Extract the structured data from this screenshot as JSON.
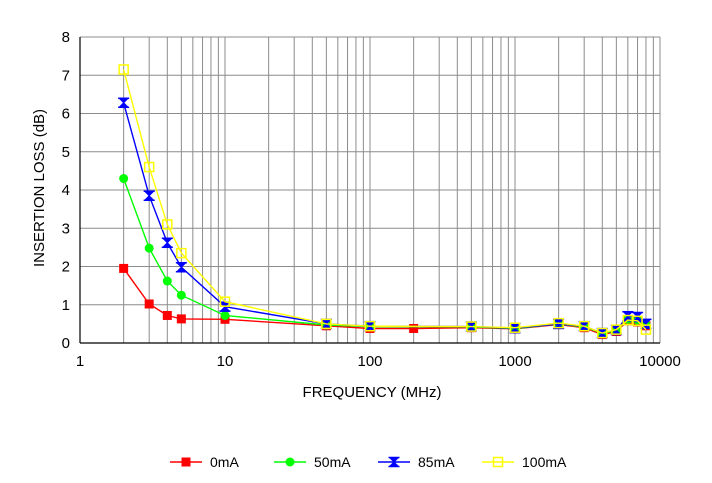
{
  "chart_data": {
    "type": "line",
    "title": "",
    "xlabel": "FREQUENCY (MHz)",
    "ylabel": "INSERTION LOSS (dB)",
    "x_scale": "log",
    "xlim": [
      1,
      10000
    ],
    "ylim": [
      0,
      8
    ],
    "x_tick_labels": [
      "1",
      "10",
      "100",
      "1000",
      "10000"
    ],
    "y_tick_labels": [
      "0",
      "1",
      "2",
      "3",
      "4",
      "5",
      "6",
      "7",
      "8"
    ],
    "grid": true,
    "legend_position": "bottom-center",
    "series": [
      {
        "name": "0mA",
        "color": "#ff0000",
        "marker": "square-filled",
        "x": [
          2,
          3,
          4,
          5,
          10,
          50,
          100,
          200,
          500,
          1000,
          2000,
          3000,
          4000,
          5000,
          6000,
          7000,
          8000
        ],
        "y": [
          1.95,
          1.02,
          0.72,
          0.63,
          0.62,
          0.45,
          0.38,
          0.38,
          0.4,
          0.37,
          0.48,
          0.4,
          0.22,
          0.3,
          0.58,
          0.55,
          0.45
        ]
      },
      {
        "name": "50mA",
        "color": "#00ff00",
        "marker": "circle-filled",
        "x": [
          2,
          3,
          4,
          5,
          10,
          50,
          100,
          500,
          1000,
          2000,
          3000,
          4000,
          5000,
          6000,
          7000,
          8000
        ],
        "y": [
          4.3,
          2.48,
          1.62,
          1.25,
          0.72,
          0.47,
          0.43,
          0.42,
          0.38,
          0.5,
          0.42,
          0.25,
          0.32,
          0.62,
          0.6,
          0.48
        ]
      },
      {
        "name": "85mA",
        "color": "#0000ff",
        "marker": "hourglass",
        "x": [
          2,
          3,
          4,
          5,
          10,
          50,
          100,
          500,
          1000,
          2000,
          3000,
          4000,
          5000,
          6000,
          7000,
          8000
        ],
        "y": [
          6.28,
          3.85,
          2.62,
          1.98,
          0.95,
          0.5,
          0.44,
          0.43,
          0.39,
          0.5,
          0.44,
          0.26,
          0.34,
          0.7,
          0.68,
          0.5
        ]
      },
      {
        "name": "100mA",
        "color": "#ffff00",
        "marker": "square-open",
        "x": [
          2,
          3,
          4,
          5,
          10,
          50,
          100,
          500,
          1000,
          2000,
          3000,
          4000,
          5000,
          6000,
          7000,
          8000
        ],
        "y": [
          7.15,
          4.6,
          3.1,
          2.35,
          1.08,
          0.5,
          0.44,
          0.43,
          0.4,
          0.52,
          0.44,
          0.26,
          0.35,
          0.6,
          0.58,
          0.35
        ]
      }
    ]
  }
}
